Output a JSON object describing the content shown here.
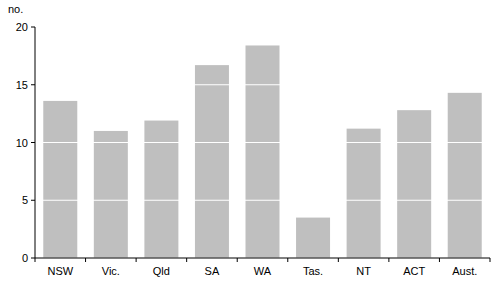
{
  "chart_data": {
    "type": "bar",
    "y_label": "no.",
    "categories": [
      "NSW",
      "Vic.",
      "Qld",
      "SA",
      "WA",
      "Tas.",
      "NT",
      "ACT",
      "Aust."
    ],
    "values": [
      13.6,
      11.0,
      11.9,
      16.7,
      18.4,
      3.5,
      11.2,
      12.8,
      14.3
    ],
    "color": "#bfbfbf",
    "ylim": [
      0,
      20
    ],
    "yticks": [
      0,
      5,
      10,
      15,
      20
    ],
    "grid": true
  }
}
